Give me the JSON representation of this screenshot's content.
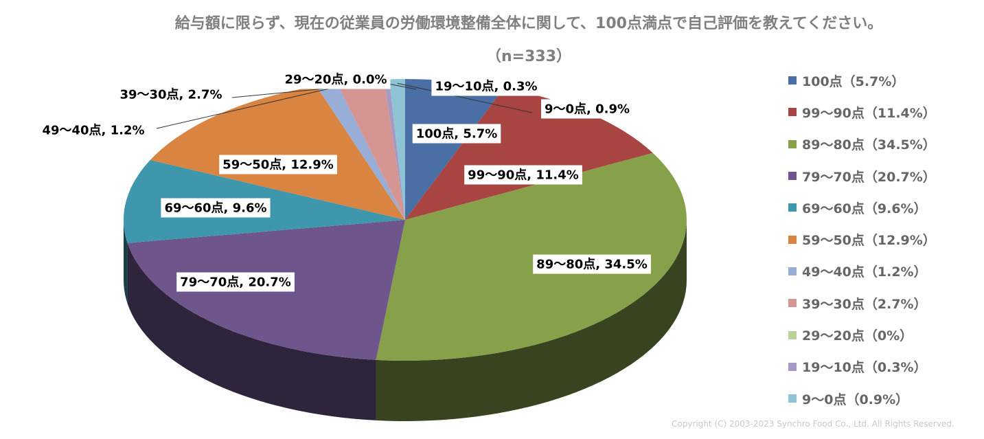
{
  "chart_data": {
    "type": "pie",
    "title": "給与額に限らず、現在の従業員の労働環境整備全体に関して、100点満点で自己評価を教えてください。",
    "subtitle": "（n=333）",
    "legend_position": "right",
    "slices": [
      {
        "label": "100点",
        "value": 5.7,
        "data_label": "100点, 5.7%",
        "legend": "100点（5.7%）",
        "color": "#4a6fa5"
      },
      {
        "label": "99～90点",
        "value": 11.4,
        "data_label": "99～90点, 11.4%",
        "legend": "99～90点（11.4%）",
        "color": "#a84442"
      },
      {
        "label": "89～80点",
        "value": 34.5,
        "data_label": "89～80点, 34.5%",
        "legend": "89～80点（34.5%）",
        "color": "#86a14a"
      },
      {
        "label": "79～70点",
        "value": 20.7,
        "data_label": "79～70点, 20.7%",
        "legend": "79～70点（20.7%）",
        "color": "#6e568c"
      },
      {
        "label": "69～60点",
        "value": 9.6,
        "data_label": "69～60点, 9.6%",
        "legend": "69～60点（9.6%）",
        "color": "#3f97ad"
      },
      {
        "label": "59～50点",
        "value": 12.9,
        "data_label": "59～50点, 12.9%",
        "legend": "59～50点（12.9%）",
        "color": "#d98440"
      },
      {
        "label": "49～40点",
        "value": 1.2,
        "data_label": "49～40点, 1.2%",
        "legend": "49～40点（1.2%）",
        "color": "#98aed6"
      },
      {
        "label": "39～30点",
        "value": 2.7,
        "data_label": "39～30点, 2.7%",
        "legend": "39～30点（2.7%）",
        "color": "#d49593"
      },
      {
        "label": "29～20点",
        "value": 0.0,
        "data_label": "29～20点, 0.0%",
        "legend": "29～20点（0%）",
        "color": "#b9d39a"
      },
      {
        "label": "19～10点",
        "value": 0.3,
        "data_label": "19～10点, 0.3%",
        "legend": "19～10点（0.3%）",
        "color": "#a899c2"
      },
      {
        "label": "9～0点",
        "value": 0.9,
        "data_label": "9～0点, 0.9%",
        "legend": "9～0点（0.9%）",
        "color": "#8fc4d6"
      }
    ]
  },
  "copyright": "Copyright (C) 2003-2023 Synchro Food Co., Ltd. All Rights Reserved."
}
